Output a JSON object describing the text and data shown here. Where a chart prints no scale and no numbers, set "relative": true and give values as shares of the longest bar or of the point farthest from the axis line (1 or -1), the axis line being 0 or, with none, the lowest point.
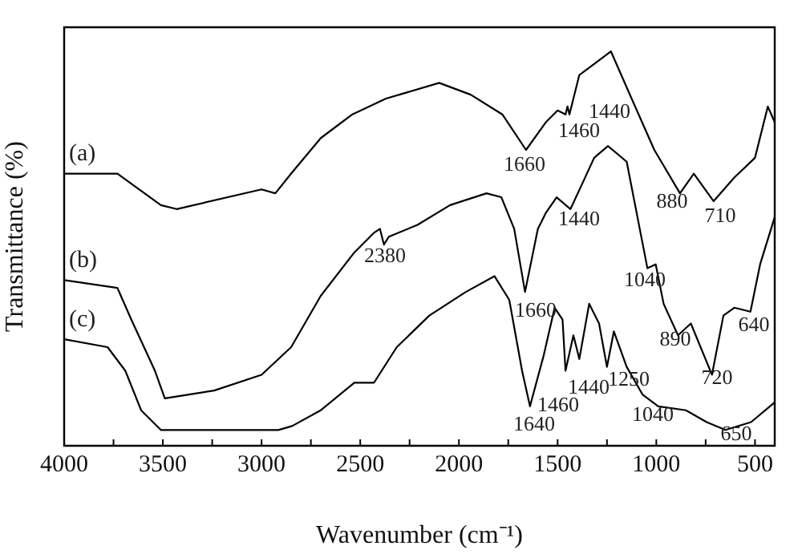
{
  "chart_data": {
    "type": "line",
    "relative": true,
    "xlabel": "Wavenumber (cm⁻¹)",
    "ylabel": "Transmittance (%)",
    "xlim": [
      4000,
      400
    ],
    "xticks": [
      4000,
      {
        "value": 3750,
        "label": null
      },
      3500,
      {
        "value": 3250,
        "label": null
      },
      3000,
      {
        "value": 2750,
        "label": null
      },
      2500,
      {
        "value": 2250,
        "label": null
      },
      2000,
      {
        "value": 1750,
        "label": null
      },
      1500,
      {
        "value": 1250,
        "label": null
      },
      1000,
      {
        "value": 750,
        "label": null
      },
      500
    ],
    "grid": false,
    "legend": false,
    "marker": "none",
    "line_style": "solid",
    "series": [
      {
        "name": "(a)",
        "color": "#000000",
        "x": [
          4000,
          3730,
          3510,
          3430,
          3000,
          2930,
          2850,
          2700,
          2540,
          2370,
          2100,
          1940,
          1780,
          1660,
          1560,
          1500,
          1460,
          1450,
          1440,
          1390,
          1230,
          1125,
          1010,
          880,
          810,
          710,
          605,
          500,
          435,
          400
        ],
        "values": [
          0.69,
          0.69,
          0.61,
          0.6,
          0.65,
          0.64,
          0.69,
          0.78,
          0.84,
          0.88,
          0.92,
          0.89,
          0.84,
          0.75,
          0.82,
          0.85,
          0.84,
          0.86,
          0.84,
          0.94,
          1.0,
          0.88,
          0.75,
          0.64,
          0.69,
          0.62,
          0.68,
          0.73,
          0.86,
          0.82
        ]
      },
      {
        "name": "(b)",
        "color": "#000000",
        "x": [
          4000,
          3730,
          3660,
          3540,
          3490,
          3240,
          3000,
          2850,
          2700,
          2530,
          2430,
          2400,
          2380,
          2355,
          2210,
          2045,
          1860,
          1785,
          1720,
          1665,
          1600,
          1560,
          1505,
          1435,
          1370,
          1315,
          1245,
          1150,
          1045,
          1003,
          963,
          890,
          825,
          718,
          660,
          605,
          523,
          474,
          400
        ],
        "values": [
          0.42,
          0.4,
          0.32,
          0.19,
          0.12,
          0.14,
          0.18,
          0.25,
          0.38,
          0.49,
          0.54,
          0.55,
          0.51,
          0.53,
          0.56,
          0.61,
          0.64,
          0.63,
          0.55,
          0.39,
          0.55,
          0.59,
          0.63,
          0.6,
          0.67,
          0.73,
          0.76,
          0.72,
          0.45,
          0.46,
          0.36,
          0.28,
          0.31,
          0.18,
          0.33,
          0.35,
          0.34,
          0.46,
          0.58
        ]
      },
      {
        "name": "(c)",
        "color": "#000000",
        "x": [
          4000,
          3780,
          3690,
          3610,
          3510,
          3000,
          2915,
          2845,
          2700,
          2530,
          2430,
          2315,
          2150,
          1965,
          1820,
          1745,
          1680,
          1640,
          1570,
          1515,
          1475,
          1460,
          1420,
          1390,
          1340,
          1290,
          1250,
          1215,
          1150,
          1070,
          990,
          850,
          745,
          650,
          520,
          400
        ],
        "values": [
          0.27,
          0.25,
          0.19,
          0.09,
          0.04,
          0.04,
          0.04,
          0.05,
          0.09,
          0.16,
          0.16,
          0.25,
          0.33,
          0.39,
          0.43,
          0.37,
          0.19,
          0.1,
          0.23,
          0.35,
          0.32,
          0.19,
          0.28,
          0.22,
          0.36,
          0.31,
          0.2,
          0.29,
          0.2,
          0.13,
          0.1,
          0.09,
          0.06,
          0.04,
          0.06,
          0.11
        ]
      }
    ],
    "annotations": [
      "1660",
      "1460",
      "1440",
      "880",
      "710",
      "2380",
      "1440",
      "1040",
      "1660",
      "890",
      "640",
      "720",
      "1640",
      "1460",
      "1440",
      "1250",
      "1040",
      "650"
    ]
  }
}
